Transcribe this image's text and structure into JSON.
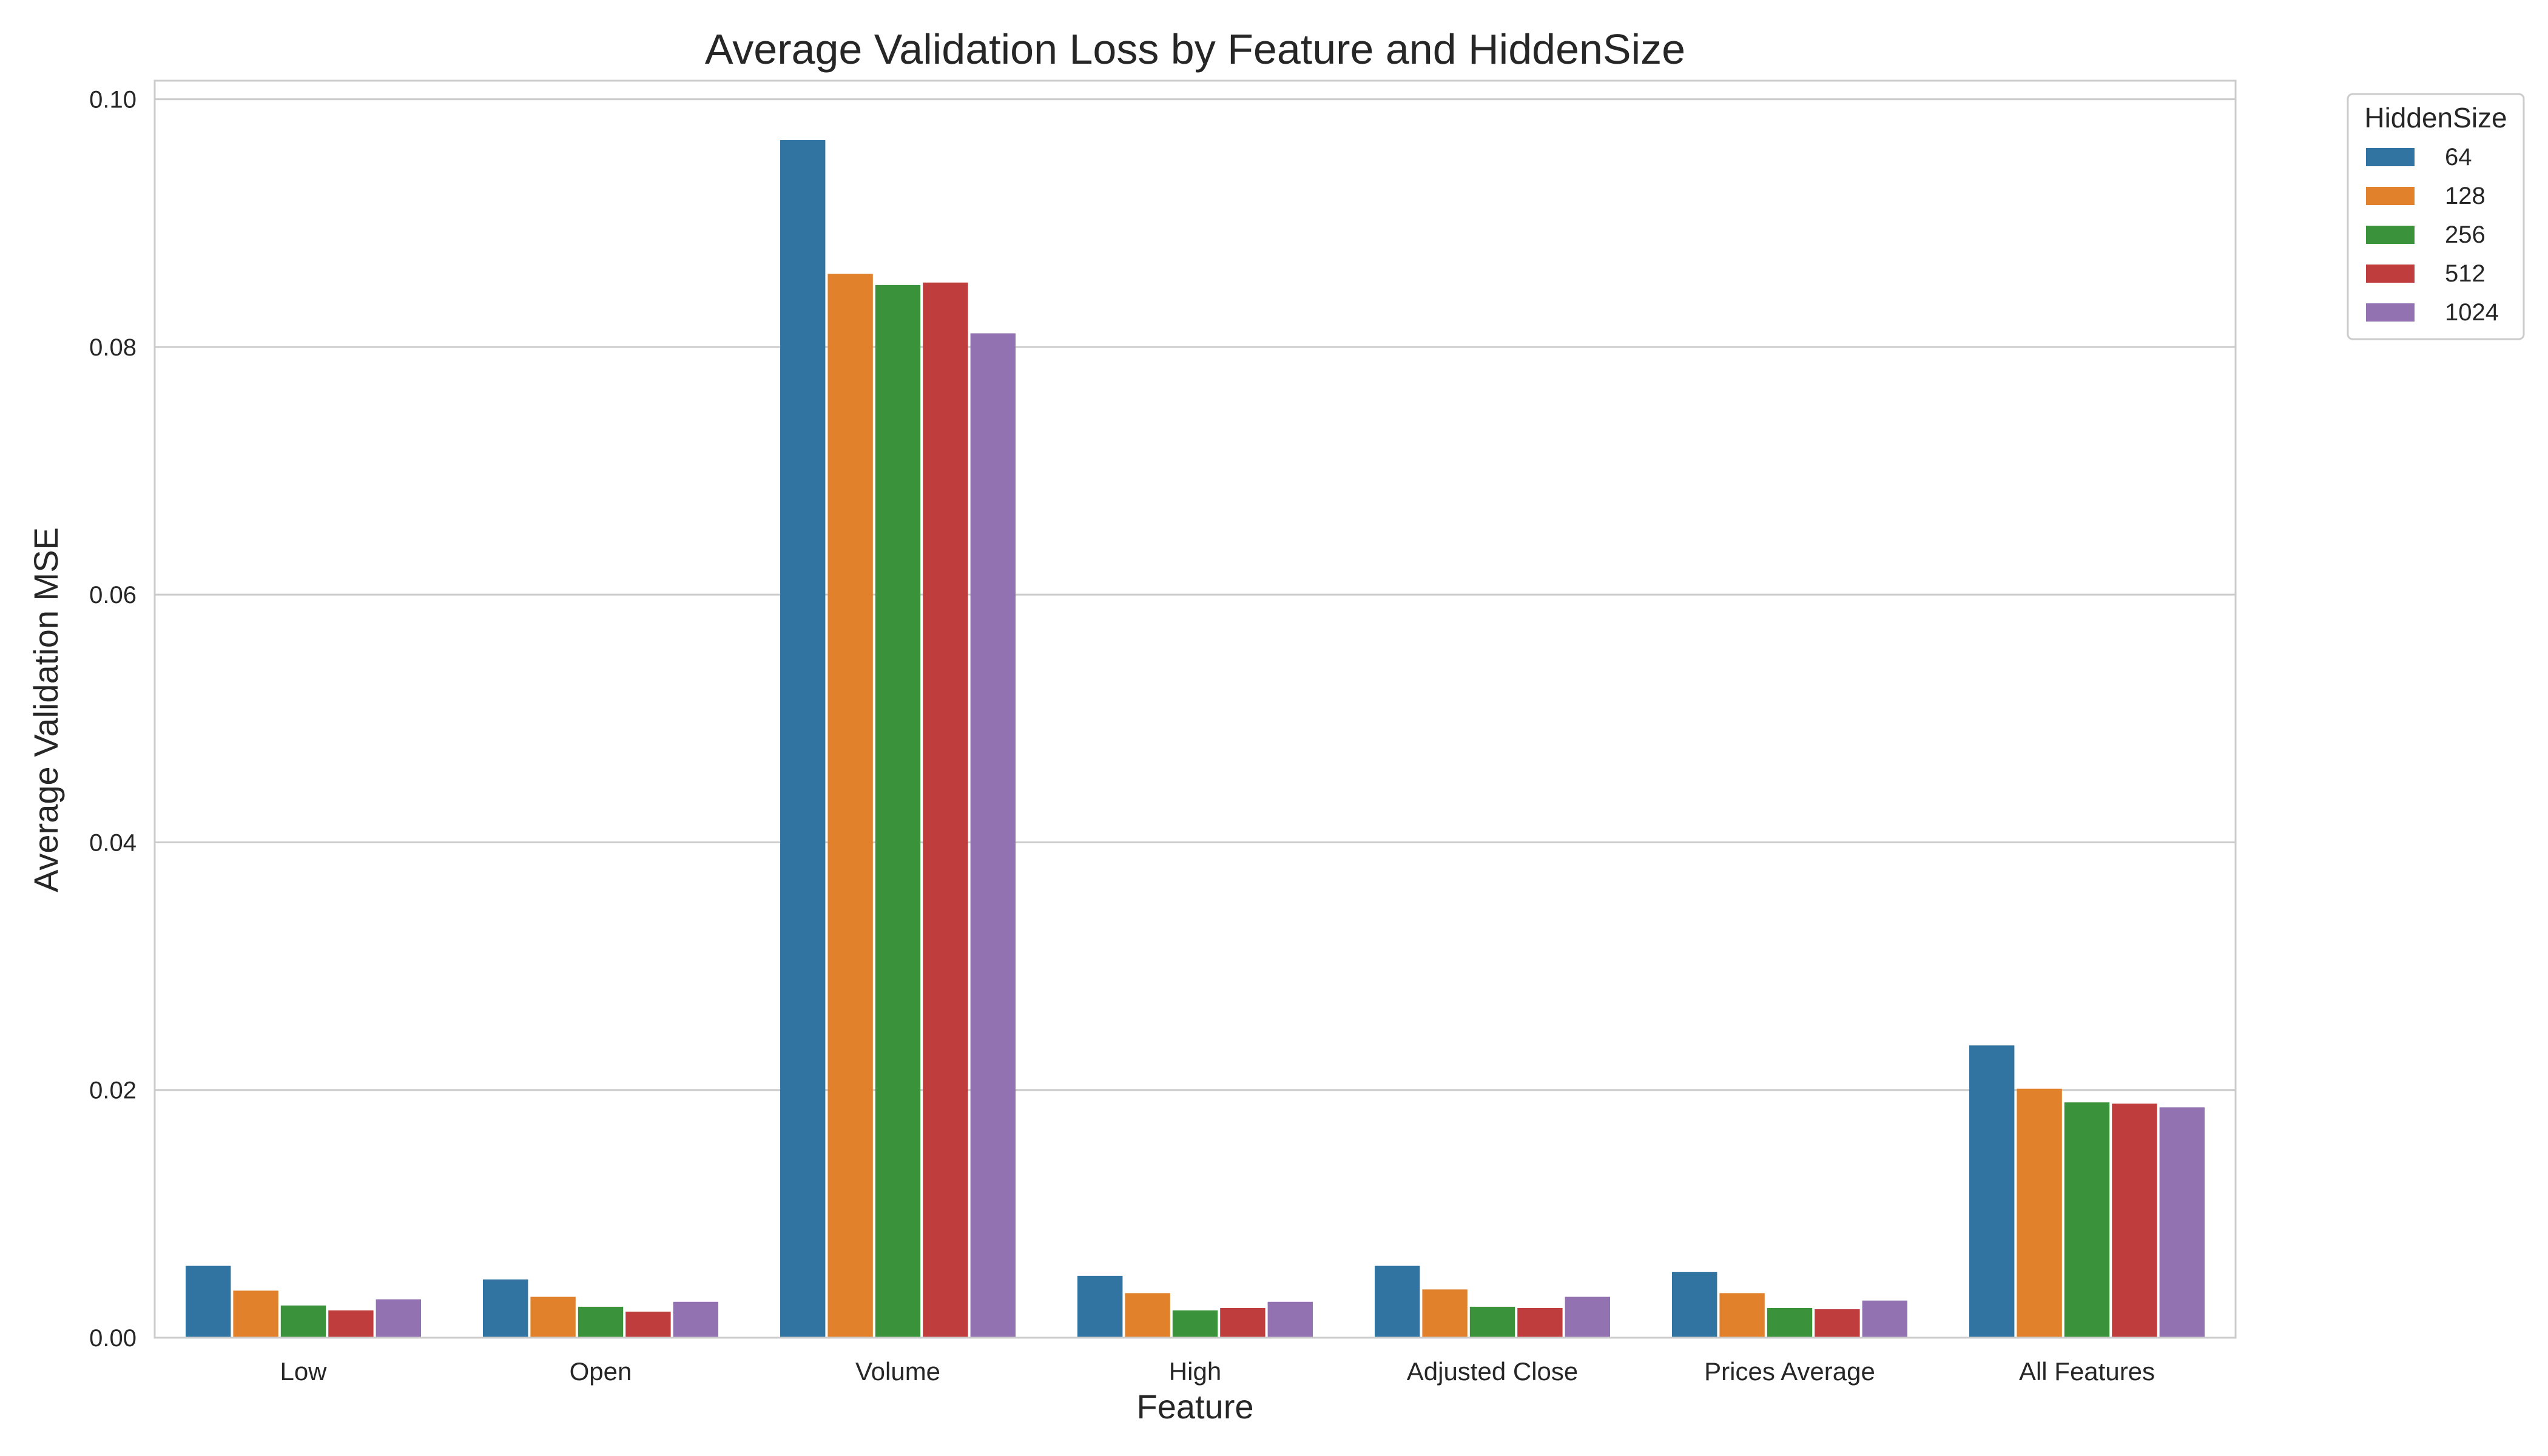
{
  "chart_data": {
    "type": "bar",
    "title": "Average Validation Loss by Feature and HiddenSize",
    "xlabel": "Feature",
    "ylabel": "Average Validation MSE",
    "ylim": [
      0,
      0.1015
    ],
    "yticks": [
      "0.00",
      "0.02",
      "0.04",
      "0.06",
      "0.08",
      "0.10"
    ],
    "ytick_values": [
      0,
      0.02,
      0.04,
      0.06,
      0.08,
      0.1
    ],
    "grid": true,
    "legend": {
      "title": "HiddenSize",
      "placement": "outside-top-right"
    },
    "categories": [
      "Low",
      "Open",
      "Volume",
      "High",
      "Adjusted Close",
      "Prices Average",
      "All Features"
    ],
    "series": [
      {
        "name": "64",
        "color": "#3274a1",
        "values": [
          0.0058,
          0.0047,
          0.0967,
          0.005,
          0.0058,
          0.0053,
          0.0236
        ]
      },
      {
        "name": "128",
        "color": "#e1812c",
        "values": [
          0.0038,
          0.0033,
          0.0859,
          0.0036,
          0.0039,
          0.0036,
          0.0201
        ]
      },
      {
        "name": "256",
        "color": "#3a923a",
        "values": [
          0.0026,
          0.0025,
          0.085,
          0.0022,
          0.0025,
          0.0024,
          0.019
        ]
      },
      {
        "name": "512",
        "color": "#c03d3e",
        "values": [
          0.0022,
          0.0021,
          0.0852,
          0.0024,
          0.0024,
          0.0023,
          0.0189
        ]
      },
      {
        "name": "1024",
        "color": "#9372b2",
        "values": [
          0.0031,
          0.0029,
          0.0811,
          0.0029,
          0.0033,
          0.003,
          0.0186
        ]
      }
    ]
  }
}
